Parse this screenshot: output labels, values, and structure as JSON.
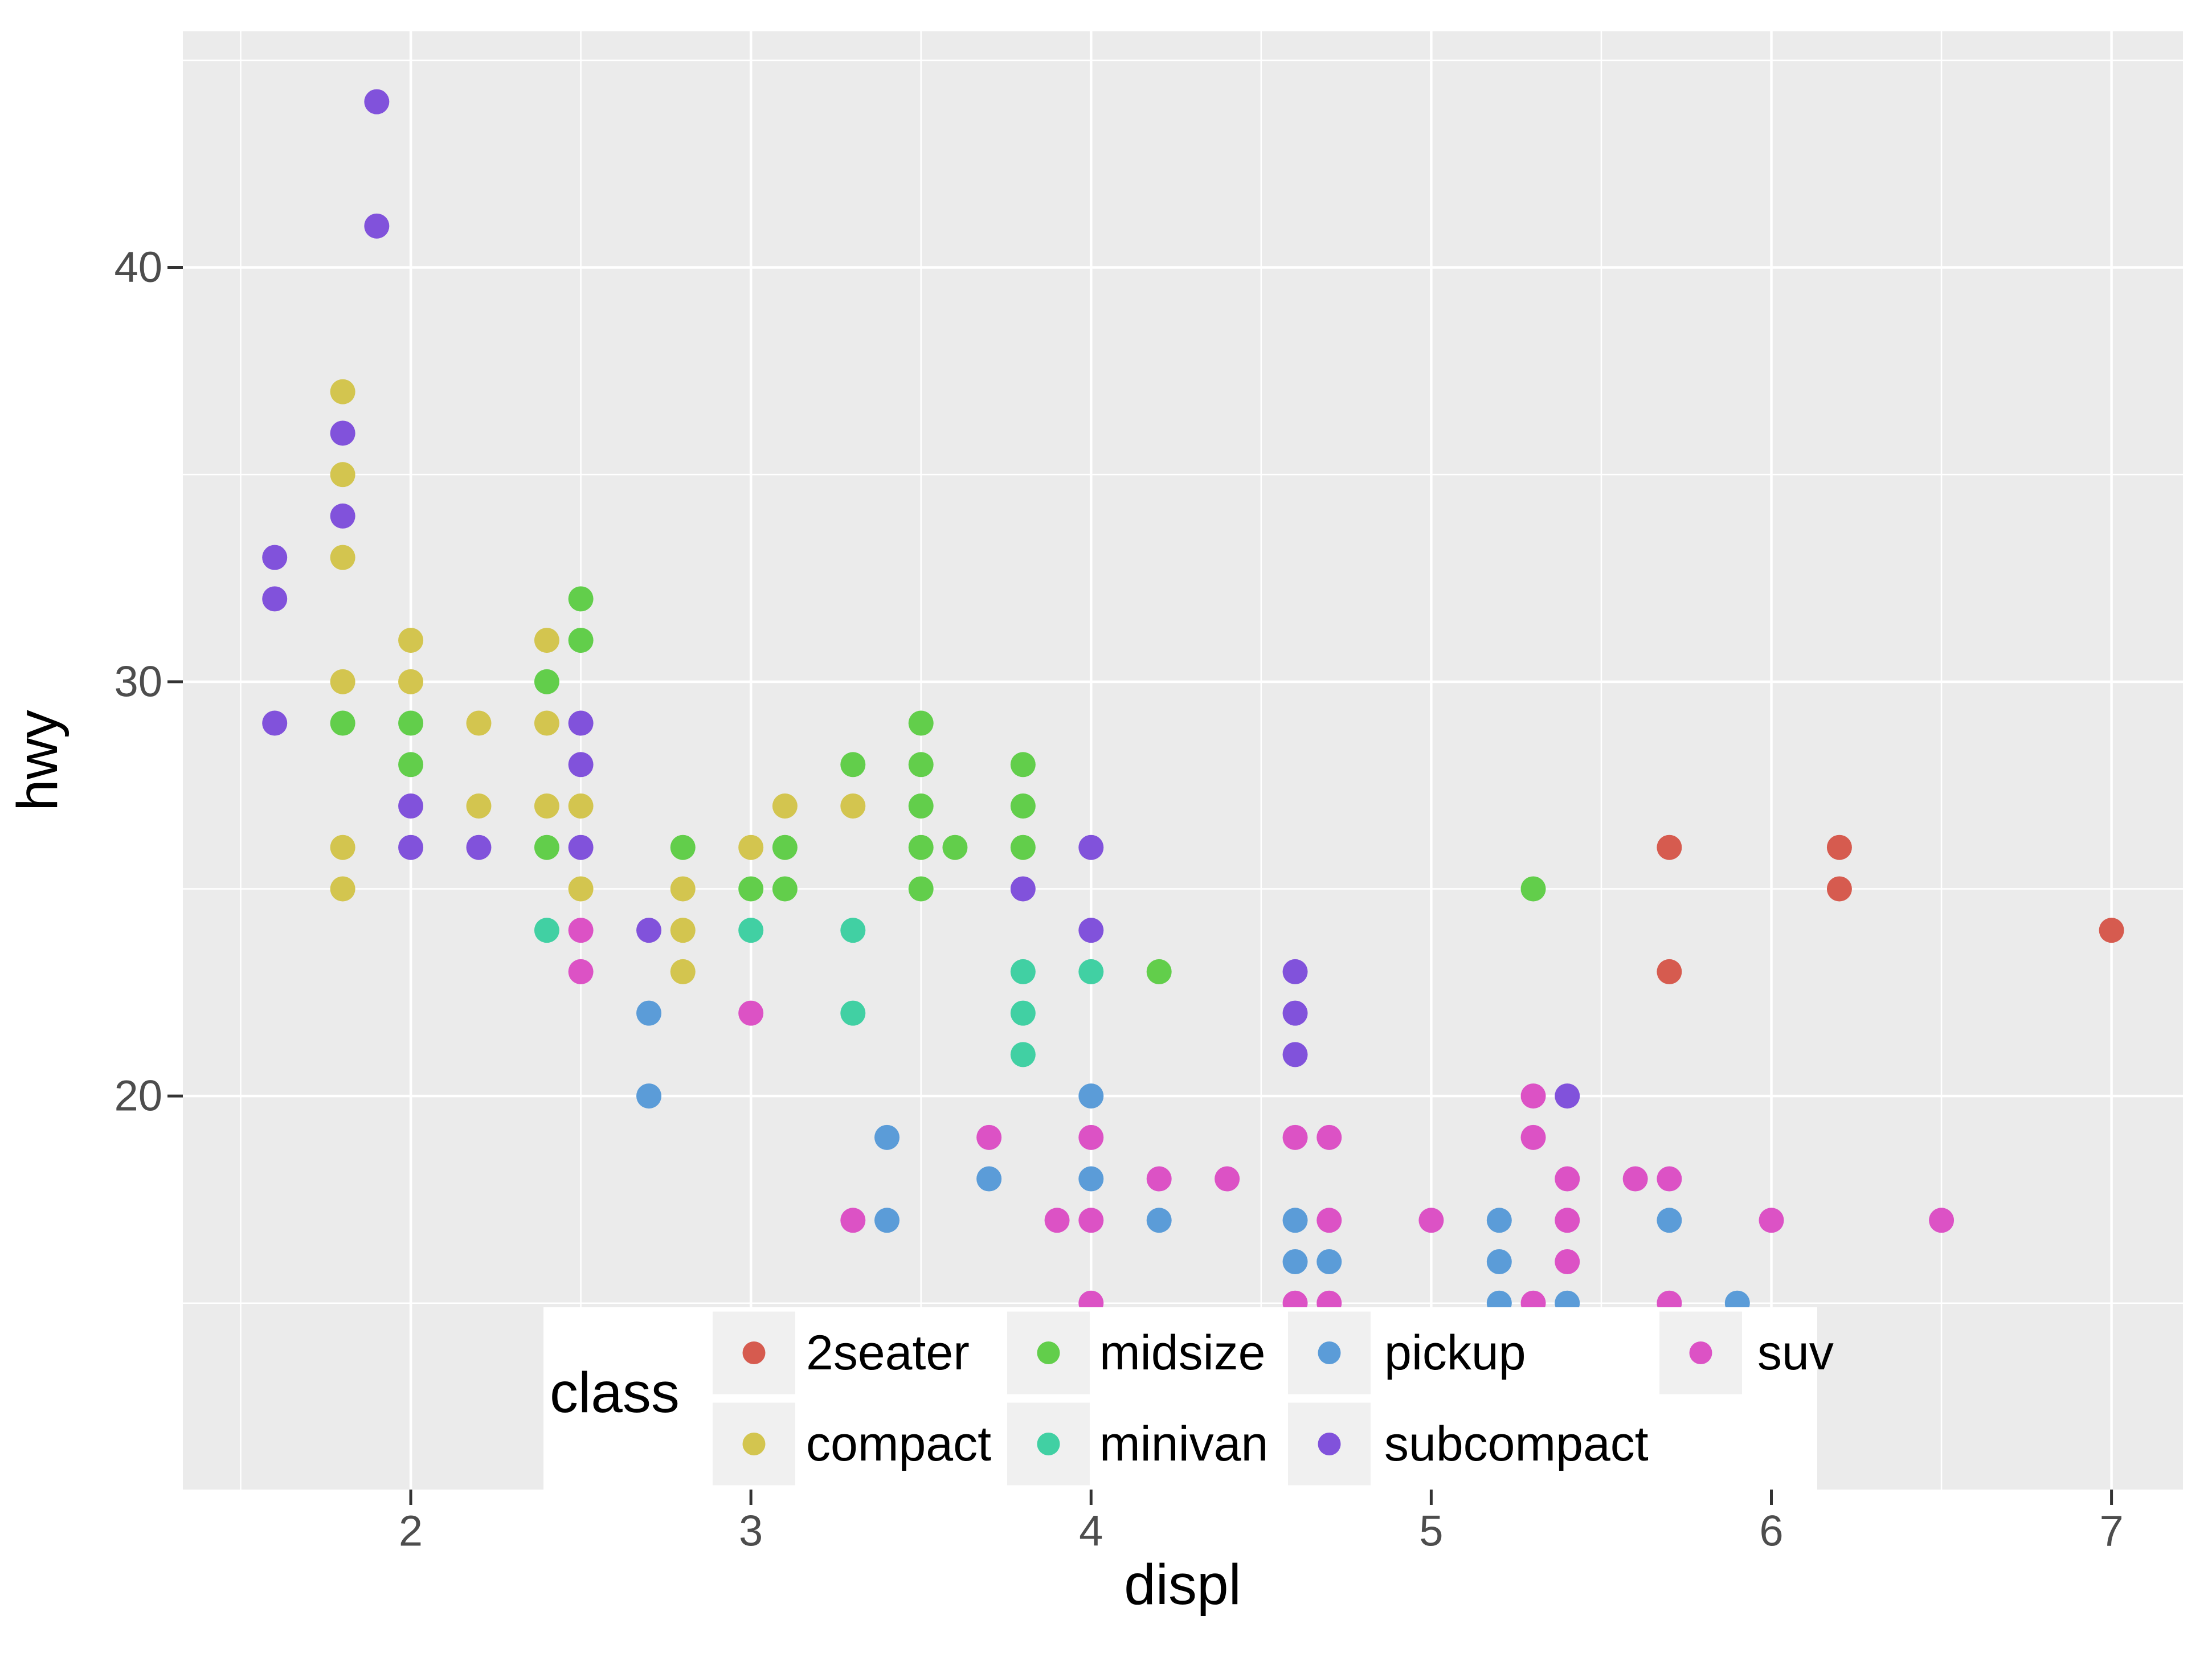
{
  "chart_data": {
    "type": "scatter",
    "title": "",
    "xlabel": "displ",
    "ylabel": "hwy",
    "x_ticks": [
      2,
      3,
      4,
      5,
      6,
      7
    ],
    "x_minor_ticks": [
      1.5,
      2.5,
      3.5,
      4.5,
      5.5,
      6.5
    ],
    "y_ticks": [
      20,
      30,
      40
    ],
    "y_minor_ticks": [
      15,
      25,
      35,
      45
    ],
    "xlim": [
      1.33,
      7.21
    ],
    "ylim": [
      10.5,
      45.7
    ],
    "grid": "white major and minor gridlines on gray panel",
    "legend": {
      "title": "class",
      "position": "inside-bottom",
      "entries": [
        {
          "label": "2seater",
          "color": "#D65B4F"
        },
        {
          "label": "compact",
          "color": "#D3C54F"
        },
        {
          "label": "midsize",
          "color": "#62CE4B"
        },
        {
          "label": "minivan",
          "color": "#41D0A3"
        },
        {
          "label": "pickup",
          "color": "#5B9CD8"
        },
        {
          "label": "subcompact",
          "color": "#8152DB"
        },
        {
          "label": "suv",
          "color": "#DC52C5"
        }
      ]
    },
    "series": [
      {
        "name": "2seater",
        "color": "#D65B4F",
        "points": [
          [
            5.7,
            26
          ],
          [
            5.7,
            23
          ],
          [
            6.2,
            26
          ],
          [
            6.2,
            25
          ],
          [
            7.0,
            24
          ]
        ]
      },
      {
        "name": "compact",
        "color": "#D3C54F",
        "points": [
          [
            1.8,
            37
          ],
          [
            1.8,
            35
          ],
          [
            1.8,
            33
          ],
          [
            1.8,
            30
          ],
          [
            1.8,
            26
          ],
          [
            1.8,
            25
          ],
          [
            2.0,
            31
          ],
          [
            2.0,
            30
          ],
          [
            2.2,
            29
          ],
          [
            2.2,
            27
          ],
          [
            2.4,
            31
          ],
          [
            2.4,
            29
          ],
          [
            2.4,
            27
          ],
          [
            2.5,
            27
          ],
          [
            2.5,
            25
          ],
          [
            2.8,
            25
          ],
          [
            2.8,
            24
          ],
          [
            2.8,
            23
          ],
          [
            3.0,
            26
          ],
          [
            3.1,
            27
          ],
          [
            3.3,
            27
          ]
        ]
      },
      {
        "name": "midsize",
        "color": "#62CE4B",
        "points": [
          [
            1.8,
            29
          ],
          [
            2.0,
            29
          ],
          [
            2.0,
            28
          ],
          [
            2.4,
            30
          ],
          [
            2.4,
            26
          ],
          [
            2.5,
            32
          ],
          [
            2.5,
            31
          ],
          [
            2.8,
            26
          ],
          [
            3.0,
            25
          ],
          [
            3.1,
            26
          ],
          [
            3.1,
            25
          ],
          [
            3.3,
            28
          ],
          [
            3.5,
            29
          ],
          [
            3.5,
            28
          ],
          [
            3.5,
            27
          ],
          [
            3.5,
            26
          ],
          [
            3.5,
            25
          ],
          [
            3.6,
            26
          ],
          [
            3.8,
            28
          ],
          [
            3.8,
            27
          ],
          [
            3.8,
            26
          ],
          [
            4.2,
            23
          ],
          [
            5.3,
            25
          ]
        ]
      },
      {
        "name": "minivan",
        "color": "#41D0A3",
        "points": [
          [
            2.4,
            24
          ],
          [
            3.0,
            24
          ],
          [
            3.3,
            24
          ],
          [
            3.3,
            22
          ],
          [
            3.8,
            23
          ],
          [
            3.8,
            22
          ],
          [
            3.8,
            21
          ],
          [
            4.0,
            23
          ]
        ]
      },
      {
        "name": "pickup",
        "color": "#5B9CD8",
        "points": [
          [
            2.7,
            22
          ],
          [
            2.7,
            20
          ],
          [
            3.4,
            19
          ],
          [
            3.4,
            17
          ],
          [
            3.7,
            18
          ],
          [
            4.0,
            20
          ],
          [
            4.0,
            18
          ],
          [
            4.2,
            17
          ],
          [
            4.6,
            17
          ],
          [
            4.6,
            16
          ],
          [
            4.7,
            16
          ],
          [
            5.2,
            17
          ],
          [
            5.2,
            16
          ],
          [
            5.2,
            15
          ],
          [
            5.4,
            15
          ],
          [
            5.7,
            17
          ],
          [
            5.9,
            15
          ]
        ]
      },
      {
        "name": "subcompact",
        "color": "#8152DB",
        "points": [
          [
            1.6,
            33
          ],
          [
            1.6,
            32
          ],
          [
            1.6,
            29
          ],
          [
            1.8,
            36
          ],
          [
            1.8,
            34
          ],
          [
            1.9,
            44
          ],
          [
            1.9,
            41
          ],
          [
            2.0,
            27
          ],
          [
            2.0,
            26
          ],
          [
            2.2,
            26
          ],
          [
            2.5,
            29
          ],
          [
            2.5,
            28
          ],
          [
            2.5,
            26
          ],
          [
            2.7,
            24
          ],
          [
            3.8,
            25
          ],
          [
            4.0,
            26
          ],
          [
            4.0,
            24
          ],
          [
            4.6,
            23
          ],
          [
            4.6,
            22
          ],
          [
            4.6,
            21
          ],
          [
            5.4,
            20
          ]
        ]
      },
      {
        "name": "suv",
        "color": "#DC52C5",
        "points": [
          [
            2.5,
            24
          ],
          [
            2.5,
            23
          ],
          [
            3.0,
            22
          ],
          [
            3.3,
            17
          ],
          [
            3.7,
            19
          ],
          [
            3.9,
            17
          ],
          [
            4.0,
            19
          ],
          [
            4.0,
            17
          ],
          [
            4.0,
            15
          ],
          [
            4.2,
            18
          ],
          [
            4.4,
            18
          ],
          [
            4.6,
            19
          ],
          [
            4.6,
            15
          ],
          [
            4.7,
            19
          ],
          [
            4.7,
            17
          ],
          [
            4.7,
            15
          ],
          [
            5.0,
            17
          ],
          [
            5.3,
            20
          ],
          [
            5.3,
            19
          ],
          [
            5.3,
            15
          ],
          [
            5.4,
            18
          ],
          [
            5.4,
            17
          ],
          [
            5.4,
            16
          ],
          [
            5.6,
            18
          ],
          [
            5.7,
            18
          ],
          [
            5.7,
            15
          ],
          [
            6.0,
            17
          ],
          [
            6.5,
            17
          ]
        ]
      }
    ]
  },
  "style": {
    "page_bg": "#FFFFFF",
    "panel_bg": "#EBEBEB",
    "grid_color": "#FFFFFF",
    "tick_mark_color": "#333333",
    "tick_label_color": "#4D4D4D",
    "axis_title_color": "#000000",
    "legend_bg": "#FFFFFF",
    "legend_key_bg": "#F0F0F0",
    "legend_text_color": "#000000"
  }
}
